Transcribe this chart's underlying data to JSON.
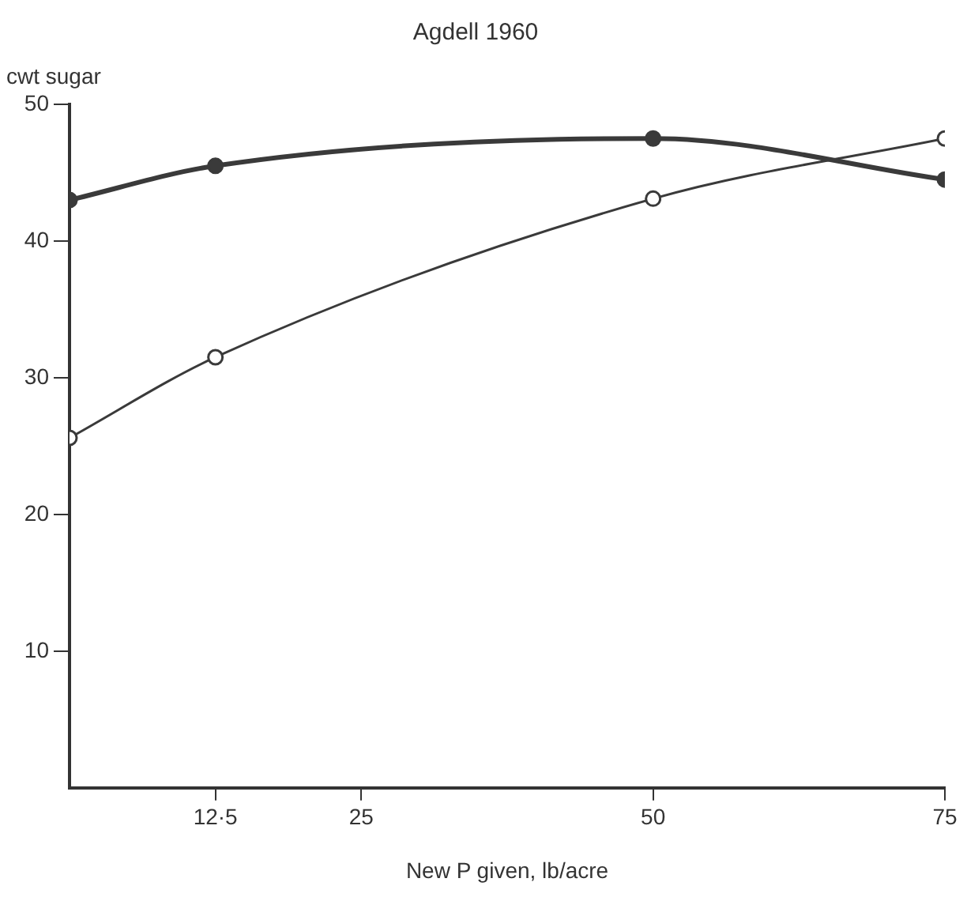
{
  "chart_data": {
    "type": "line",
    "title": "Agdell 1960",
    "xlabel": "New P given, lb/acre",
    "ylabel": "cwt sugar",
    "x": [
      0,
      12.5,
      50,
      75
    ],
    "series": [
      {
        "color": "#3a3a3a",
        "values": [
          43.0,
          45.5,
          47.5,
          44.5
        ]
      },
      {
        "color": "#3a3a3a",
        "values": [
          25.6,
          31.5,
          43.1,
          47.5
        ]
      }
    ],
    "xlim": [
      0,
      75
    ],
    "xticks": [
      {
        "value": 12.5,
        "label": "12·5"
      },
      25,
      50,
      75
    ],
    "ylim": [
      0,
      50
    ],
    "yticks": [
      10,
      20,
      30,
      40,
      50
    ],
    "grid": false,
    "legend": false,
    "marker": "circle",
    "line_style": "solid"
  }
}
